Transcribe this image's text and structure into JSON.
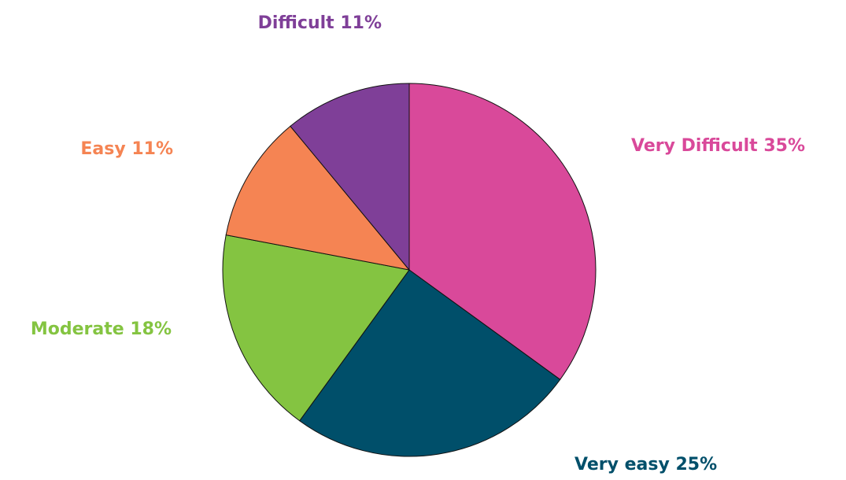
{
  "chart_data": {
    "type": "pie",
    "values": [
      35,
      25,
      18,
      11,
      11
    ],
    "value_labels": [
      "Very Difficult 35%",
      "Very easy 25%",
      "Moderate 18%",
      "Easy 11%",
      "Difficult 11%"
    ],
    "colors": [
      "#d9499a",
      "#004f6a",
      "#84c441",
      "#f58453",
      "#7f3f98"
    ]
  }
}
